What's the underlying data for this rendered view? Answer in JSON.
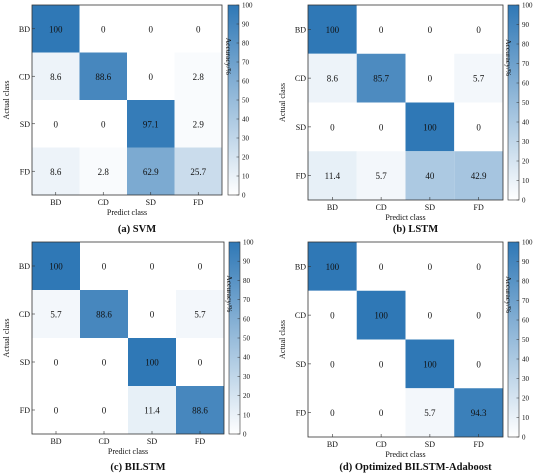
{
  "figure_colors": {
    "low": "#ffffff",
    "high": "#2f78b6",
    "axis": "#333333",
    "text": "#111111"
  },
  "chart_data": [
    {
      "type": "heatmap",
      "caption_label": "(a)",
      "caption_name": "SVM",
      "rows": [
        "BD",
        "CD",
        "SD",
        "FD"
      ],
      "columns": [
        "BD",
        "CD",
        "SD",
        "FD"
      ],
      "values": [
        [
          100,
          0,
          0,
          0
        ],
        [
          8.6,
          88.6,
          0,
          2.8
        ],
        [
          0,
          0,
          97.1,
          2.9
        ],
        [
          8.6,
          2.8,
          62.9,
          25.7
        ]
      ],
      "xlabel": "Predict class",
      "ylabel": "Actual class",
      "colorbar_label": "Accuracy/%",
      "colorbar_ticks": [
        0,
        10,
        20,
        30,
        40,
        50,
        60,
        70,
        80,
        90,
        100
      ],
      "clim": [
        0,
        100
      ]
    },
    {
      "type": "heatmap",
      "caption_label": "(b)",
      "caption_name": "LSTM",
      "rows": [
        "BD",
        "CD",
        "SD",
        "FD"
      ],
      "columns": [
        "BD",
        "CD",
        "SD",
        "FD"
      ],
      "values": [
        [
          100,
          0,
          0,
          0
        ],
        [
          8.6,
          85.7,
          0,
          5.7
        ],
        [
          0,
          0,
          100,
          0
        ],
        [
          11.4,
          5.7,
          40,
          42.9
        ]
      ],
      "xlabel": "Predict class",
      "ylabel": "Actual class",
      "colorbar_label": "Accuracy/%",
      "colorbar_ticks": [
        0,
        10,
        20,
        30,
        40,
        50,
        60,
        70,
        80,
        90,
        100
      ],
      "clim": [
        0,
        100
      ]
    },
    {
      "type": "heatmap",
      "caption_label": "(c)",
      "caption_name": "BILSTM",
      "rows": [
        "BD",
        "CD",
        "SD",
        "FD"
      ],
      "columns": [
        "BD",
        "CD",
        "SD",
        "FD"
      ],
      "values": [
        [
          100,
          0,
          0,
          0
        ],
        [
          5.7,
          88.6,
          0,
          5.7
        ],
        [
          0,
          0,
          100,
          0
        ],
        [
          0,
          0,
          11.4,
          88.6
        ]
      ],
      "xlabel": "Predict class",
      "ylabel": "Actual class",
      "colorbar_label": "Accuracy/%",
      "colorbar_ticks": [
        0,
        10,
        20,
        30,
        40,
        50,
        60,
        70,
        80,
        90,
        100
      ],
      "clim": [
        0,
        100
      ]
    },
    {
      "type": "heatmap",
      "caption_label": "(d)",
      "caption_name": "Optimized BILSTM-Adaboost",
      "rows": [
        "BD",
        "CD",
        "SD",
        "FD"
      ],
      "columns": [
        "BD",
        "CD",
        "SD",
        "FD"
      ],
      "values": [
        [
          100,
          0,
          0,
          0
        ],
        [
          0,
          100,
          0,
          0
        ],
        [
          0,
          0,
          100,
          0
        ],
        [
          0,
          0,
          5.7,
          94.3
        ]
      ],
      "xlabel": "Predict class",
      "ylabel": "Actual class",
      "colorbar_label": "Accuracy/%",
      "colorbar_ticks": [
        0,
        10,
        20,
        30,
        40,
        50,
        60,
        70,
        80,
        90,
        100
      ],
      "clim": [
        0,
        100
      ]
    }
  ]
}
